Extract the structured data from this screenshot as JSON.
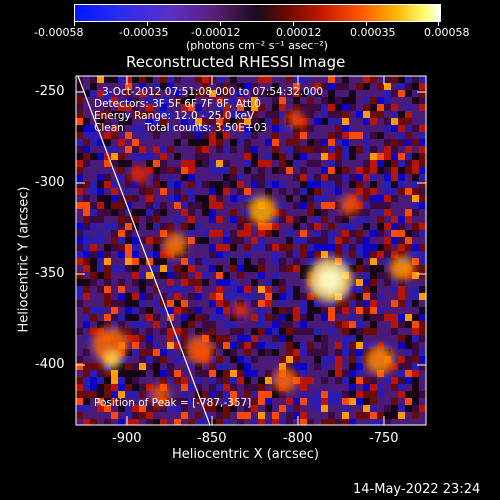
{
  "colorbar": {
    "ticks": [
      "-0.00058",
      "-0.00035",
      "-0.00012",
      "0.00012",
      "0.00035",
      "0.00058"
    ],
    "unit": "(photons cm⁻² s⁻¹ asec⁻²)"
  },
  "image": {
    "title": "Reconstructed RHESSI Image",
    "info_time": "3-Oct-2012 07:51:08.000 to 07:54:32.000",
    "info_detectors": "Detectors: 3F 5F 6F 7F 8F, Att 0",
    "info_energy": "Energy Range: 12.0 - 25.0 keV",
    "info_clean_label": "Clean",
    "info_counts": "Total counts: 3.50E+03",
    "peak": "Position of Peak = [-787,-357]",
    "xlabel": "Heliocentric X (arcsec)",
    "ylabel": "Heliocentric Y (arcsec)",
    "xticks": [
      "-900",
      "-850",
      "-800",
      "-750"
    ],
    "yticks": [
      "-250",
      "-300",
      "-350",
      "-400"
    ],
    "colors": {
      "background": "#000000",
      "axes": "#ffffff",
      "limb": "#ffffff"
    }
  },
  "footer": {
    "timestamp": "14-May-2022 23:24"
  },
  "chart_data": {
    "type": "heatmap",
    "title": "Reconstructed RHESSI Image",
    "xlabel": "Heliocentric X (arcsec)",
    "ylabel": "Heliocentric Y (arcsec)",
    "xlim": [
      -930,
      -735
    ],
    "ylim": [
      -432,
      -242
    ],
    "zlim": [
      -0.00058,
      0.00058
    ],
    "colormap": "diverging blue-purple-black-red-yellow-white",
    "peak": [
      -787,
      -357
    ],
    "peak_value": 0.00058,
    "grid": false
  }
}
